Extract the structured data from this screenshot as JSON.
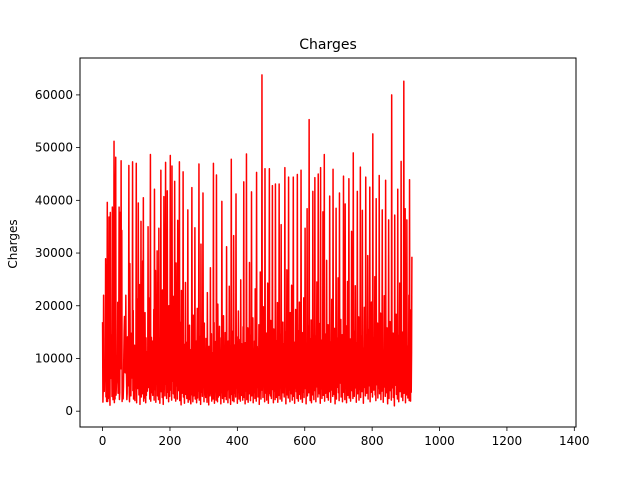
{
  "chart_data": {
    "type": "line",
    "title": "Charges",
    "xlabel": "",
    "ylabel": "Charges",
    "xlim": [
      -67,
      1405
    ],
    "ylim": [
      -3000,
      67000
    ],
    "x_ticks": [
      0,
      200,
      400,
      600,
      800,
      1000,
      1200,
      1400
    ],
    "y_ticks": [
      0,
      10000,
      20000,
      30000,
      40000,
      50000,
      60000
    ],
    "grid": false,
    "legend": "none",
    "line_color": "#ff0000",
    "series": [
      {
        "x_start": 0,
        "x_step": 1,
        "values": [
          16885,
          1726,
          4449,
          21984,
          3867,
          3757,
          8241,
          7282,
          6406,
          28923,
          2721,
          27809,
          1827,
          11091,
          39612,
          1837,
          10798,
          2396,
          10603,
          36838,
          13229,
          4150,
          1138,
          37702,
          6204,
          14001,
          14452,
          12269,
          2776,
          38712,
          35585,
          2198,
          4688,
          13771,
          51195,
          1626,
          15612,
          2302,
          39775,
          48173,
          3047,
          4950,
          6273,
          6314,
          6080,
          20631,
          3394,
          3557,
          12630,
          38710,
          2212,
          3579,
          23569,
          37743,
          8060,
          47497,
          13608,
          34304,
          1837,
          5990,
          5138,
          2330,
          4600,
          10500,
          15200,
          17970,
          8400,
          7300,
          11000,
          22000,
          8700,
          6600,
          2200,
          3400,
          14100,
          6100,
          9800,
          4800,
          46600,
          3500,
          1800,
          28000,
          12400,
          6500,
          2900,
          8900,
          14800,
          6300,
          9200,
          47300,
          3900,
          19100,
          2300,
          7600,
          5600,
          12500,
          2000,
          8200,
          4400,
          10800,
          47000,
          1600,
          21300,
          7000,
          13600,
          4300,
          39500,
          8300,
          3100,
          11900,
          24000,
          1300,
          5400,
          9600,
          36000,
          2700,
          7800,
          15500,
          3300,
          28500,
          12000,
          40500,
          1900,
          6800,
          9900,
          2500,
          18700,
          5200,
          1600,
          13900,
          3000,
          8500,
          11300,
          3800,
          7700,
          35000,
          4500,
          21500,
          6200,
          10000,
          2300,
          16500,
          48700,
          1900,
          5800,
          14000,
          8000,
          3500,
          13300,
          3000,
          10900,
          6500,
          19300,
          2100,
          42100,
          7900,
          4100,
          26700,
          1700,
          9300,
          17500,
          5400,
          30400,
          2900,
          6900,
          11600,
          2200,
          34700,
          4600,
          8800,
          1500,
          12900,
          7300,
          45700,
          3700,
          15300,
          9500,
          2600,
          23000,
          6100,
          1300,
          11000,
          40700,
          4200,
          8100,
          2900,
          17000,
          47200,
          5100,
          13400,
          2400,
          7500,
          41800,
          3600,
          12100,
          6600,
          1800,
          20000,
          9400,
          2800,
          14700,
          48500,
          4000,
          10200,
          7200,
          2100,
          46500,
          12400,
          5700,
          21800,
          3300,
          8700,
          15400,
          2500,
          43600,
          6400,
          11200,
          1900,
          28100,
          9000,
          4800,
          19800,
          2300,
          36200,
          7100,
          13500,
          3900,
          10600,
          47300,
          2000,
          16900,
          5500,
          8300,
          1200,
          22900,
          11100,
          3400,
          14600,
          6800,
          45400,
          2700,
          9900,
          4100,
          1500,
          12700,
          7600,
          24400,
          3200,
          10400,
          8700,
          2400,
          13100,
          5900,
          38200,
          1700,
          9800,
          4700,
          2200,
          16300,
          6200,
          11700,
          2000,
          1400,
          7900,
          3100,
          42400,
          10600,
          5300,
          1800,
          18200,
          8300,
          2900,
          12400,
          6000,
          34800,
          2300,
          9500,
          4400,
          13300,
          1600,
          10000,
          19500,
          2500,
          7400,
          3800,
          11500,
          46900,
          2100,
          8800,
          5100,
          14200,
          1300,
          31700,
          6600,
          3600,
          10800,
          2800,
          12900,
          41400,
          4900,
          9100,
          1800,
          16700,
          3100,
          11400,
          7600,
          2600,
          13800,
          5400,
          8600,
          1700,
          22500,
          3800,
          9600,
          6100,
          1200,
          12300,
          4300,
          10900,
          2900,
          27200,
          7200,
          3300,
          14700,
          1900,
          8700,
          5800,
          11100,
          2300,
          47000,
          6300,
          16800,
          1500,
          10100,
          3700,
          13200,
          8100,
          2100,
          44800,
          4800,
          9300,
          1800,
          20300,
          6700,
          2700,
          12200,
          5200,
          16100,
          3000,
          10500,
          7800,
          1400,
          13900,
          3500,
          39800,
          8900,
          2400,
          11600,
          4600,
          18100,
          1700,
          9700,
          6400,
          2800,
          14900,
          5600,
          12000,
          2200,
          31200,
          7000,
          3900,
          10300,
          1600,
          13300,
          8200,
          4100,
          23700,
          2500,
          9000,
          6900,
          1300,
          11800,
          47800,
          3200,
          15200,
          7700,
          2000,
          10700,
          5000,
          33300,
          1800,
          12600,
          6000,
          3400,
          9100,
          2700,
          41200,
          4400,
          14100,
          8400,
          1500,
          11300,
          3600,
          19000,
          6600,
          2300,
          10400,
          5500,
          13600,
          1900,
          24900,
          7400,
          3000,
          12800,
          4700,
          9500,
          2100,
          16000,
          8000,
          43500,
          2600,
          11000,
          5900,
          1400,
          13000,
          6800,
          3800,
          48800,
          2200,
          9800,
          4300,
          15800,
          1700,
          12100,
          7100,
          3300,
          28200,
          5400,
          10200,
          2000,
          14400,
          6200,
          41600,
          2900,
          9000,
          4900,
          17700,
          1600,
          11700,
          7900,
          3500,
          13300,
          2400,
          23200,
          6500,
          10600,
          1900,
          45300,
          4500,
          12300,
          8300,
          2700,
          9400,
          5800,
          16400,
          1300,
          11200,
          3700,
          26400,
          7000,
          2300,
          14000,
          6100,
          63800,
          4000,
          10900,
          2600,
          19800,
          5700,
          12700,
          8500,
          1800,
          46000,
          3400,
          9700,
          6800,
          14800,
          2100,
          11500,
          4700,
          24300,
          7500,
          1500,
          13600,
          3300,
          46000,
          5300,
          10000,
          2900,
          17200,
          8800,
          2400,
          12000,
          6400,
          42800,
          4100,
          9300,
          1600,
          15600,
          7300,
          3800,
          11900,
          2200,
          43100,
          5500,
          13400,
          2600,
          9900,
          4600,
          20600,
          1700,
          12400,
          7700,
          3000,
          43100,
          6100,
          10500,
          2300,
          14600,
          5000,
          35400,
          8400,
          1900,
          11300,
          4200,
          16900,
          3500,
          12800,
          6900,
          2700,
          9200,
          46200,
          4800,
          15100,
          1400,
          10800,
          7600,
          26800,
          3100,
          13700,
          5900,
          2500,
          44400,
          8900,
          4000,
          11600,
          1800,
          18700,
          6300,
          12100,
          3300,
          23900,
          9600,
          2100,
          14200,
          5100,
          44400,
          2800,
          10400,
          7200,
          1500,
          13100,
          4400,
          19300,
          8000,
          3700,
          11800,
          2400,
          44900,
          6500,
          15300,
          1900,
          9800,
          5300,
          20700,
          3200,
          12900,
          7900,
          2300,
          45700,
          4100,
          10700,
          6000,
          1700,
          14900,
          8800,
          3600,
          21500,
          2600,
          11100,
          5700,
          34700,
          4300,
          12500,
          1400,
          9400,
          7000,
          38400,
          2900,
          16200,
          5500,
          10300,
          3500,
          55300,
          6700,
          13800,
          2000,
          8600,
          4900,
          17300,
          1600,
          11500,
          7400,
          3100,
          41700,
          5200,
          12700,
          2200,
          9100,
          6200,
          44300,
          3900,
          14300,
          1800,
          10000,
          8200,
          24500,
          4600,
          12200,
          2700,
          45000,
          5800,
          9700,
          3300,
          16600,
          7100,
          1500,
          46200,
          4200,
          13500,
          8700,
          2400,
          11400,
          6000,
          37800,
          3000,
          10900,
          5500,
          48700,
          1900,
          14700,
          7600,
          3400,
          12400,
          4700,
          28600,
          2600,
          9300,
          6600,
          16400,
          2100,
          11900,
          8300,
          3700,
          40800,
          5100,
          13200,
          1700,
          10200,
          7000,
          21200,
          4000,
          12600,
          2800,
          45900,
          6400,
          9600,
          3200,
          15700,
          5700,
          1400,
          11600,
          8100,
          38500,
          2300,
          13900,
          4500,
          10500,
          6900,
          25300,
          3500,
          12800,
          2000,
          41400,
          7700,
          9900,
          5300,
          17400,
          2700,
          11200,
          4200,
          14500,
          1800,
          10700,
          6200,
          44600,
          3600,
          13100,
          8900,
          2200,
          39300,
          5000,
          12100,
          7300,
          1600,
          16200,
          4700,
          24600,
          3000,
          11000,
          6700,
          44100,
          2500,
          9500,
          5900,
          13700,
          1900,
          10800,
          8400,
          34100,
          3900,
          12300,
          6100,
          2400,
          49000,
          5400,
          15200,
          2800,
          9800,
          7500,
          23800,
          4400,
          13000,
          1700,
          11800,
          6800,
          41700,
          3300,
          10100,
          5600,
          17900,
          2100,
          12600,
          8000,
          4100,
          46300,
          2600,
          14300,
          6300,
          10600,
          3700,
          38100,
          5200,
          12000,
          1500,
          9600,
          7100,
          19700,
          4500,
          11300,
          2900,
          44400,
          6000,
          13500,
          3400,
          10300,
          8600,
          29500,
          2300,
          15500,
          5800,
          11700,
          4800,
          42500,
          1800,
          12900,
          7400,
          3600,
          20700,
          6600,
          10000,
          2700,
          52600,
          5500,
          14000,
          4000,
          11900,
          8200,
          25500,
          3100,
          13200,
          2000,
          40300,
          6900,
          9400,
          5000,
          16700,
          2500,
          12200,
          7700,
          4300,
          44700,
          3300,
          10500,
          6300,
          18600,
          2200,
          14900,
          8800,
          3800,
          38200,
          5700,
          11600,
          1700,
          9900,
          7200,
          21900,
          4600,
          13300,
          2800,
          43800,
          6100,
          10800,
          3500,
          15800,
          5300,
          1400,
          12500,
          8000,
          36300,
          2400,
          11100,
          6500,
          17000,
          3900,
          13600,
          7000,
          2100,
          60000,
          5100,
          9700,
          4400,
          14800,
          2600,
          12700,
          7900,
          1000,
          37200,
          4900,
          10900,
          6800,
          18400,
          3200,
          12100,
          8500,
          2300,
          42100,
          5900,
          14400,
          1800,
          11400,
          7300,
          24300,
          3700,
          10200,
          6200,
          47400,
          2700,
          13000,
          4800,
          15000,
          2000,
          11800,
          8700,
          62600,
          3400,
          9300,
          5600,
          38400,
          1600,
          14100,
          7600,
          3100,
          36300,
          6400,
          12400,
          2500,
          10700,
          4600,
          22000,
          2000,
          43900,
          5200,
          13700,
          1900,
          19200,
          3600,
          11200,
          29300
        ]
      }
    ]
  }
}
